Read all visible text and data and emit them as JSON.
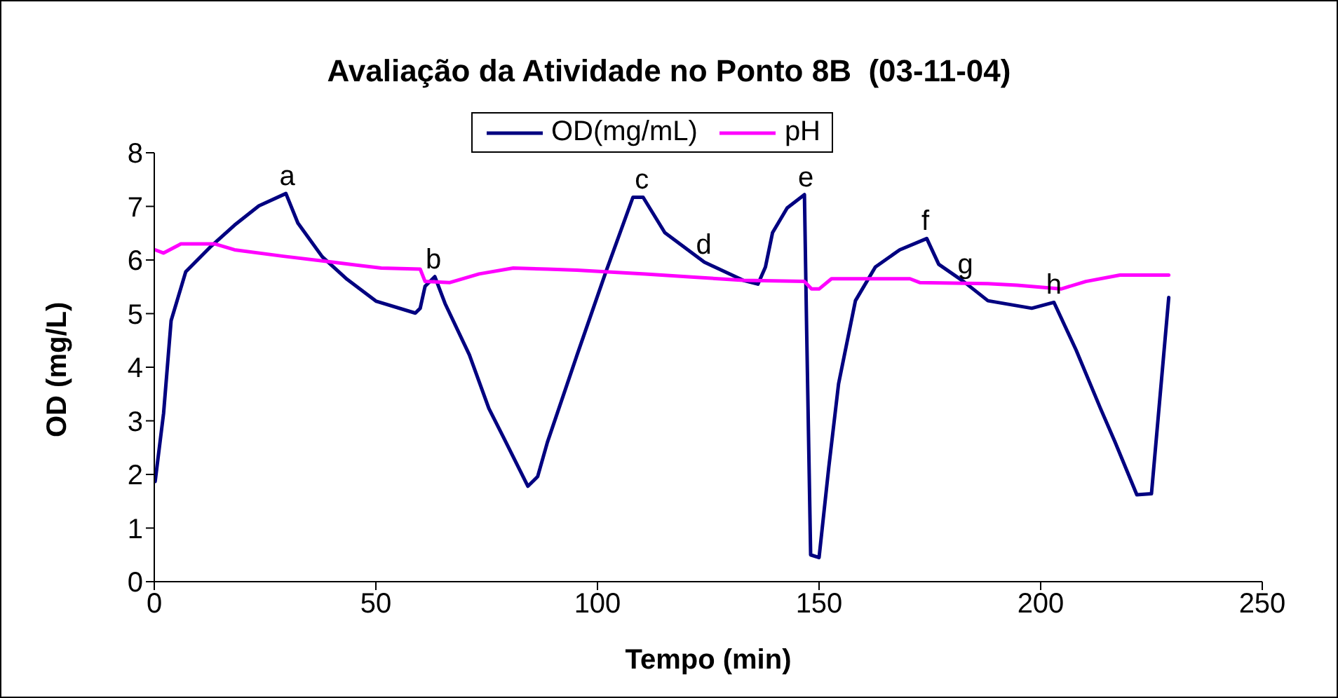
{
  "chart_data": {
    "type": "line",
    "title": "Avaliação da Atividade no Ponto 8B  (03-11-04)",
    "xlabel": "Tempo (min)",
    "ylabel": "OD (mg/L)",
    "xlim": [
      0,
      250
    ],
    "xticks": [
      0,
      50,
      100,
      150,
      200,
      250
    ],
    "ylim": [
      0,
      8
    ],
    "yticks": [
      0,
      1,
      2,
      3,
      4,
      5,
      6,
      7,
      8
    ],
    "grid": false,
    "legend": "top",
    "marker": "none",
    "line_style": "solid",
    "series": [
      {
        "name": "OD(mg/mL)",
        "color": "#000080",
        "x": [
          0.2,
          2.1,
          3.8,
          7.1,
          12.6,
          18.1,
          23.6,
          29.7,
          32.4,
          37.9,
          43.5,
          50.1,
          58.9,
          60.0,
          61.1,
          63.3,
          65.6,
          71.1,
          75.5,
          78.8,
          84.3,
          86.5,
          88.7,
          95.4,
          101.9,
          108.0,
          110.3,
          115.2,
          124.1,
          132.9,
          136.2,
          137.9,
          139.5,
          142.8,
          146.7,
          147.2,
          148.1,
          150.0,
          152.2,
          154.4,
          158.2,
          162.7,
          168.2,
          174.3,
          177.0,
          182.6,
          188.1,
          198.0,
          203.0,
          208.0,
          213.5,
          216.8,
          221.7,
          225.0,
          228.9
        ],
        "values": [
          1.87,
          3.14,
          4.87,
          5.78,
          6.24,
          6.65,
          7.01,
          7.24,
          6.69,
          6.06,
          5.64,
          5.23,
          5.01,
          5.1,
          5.51,
          5.69,
          5.19,
          4.23,
          3.23,
          2.69,
          1.78,
          1.96,
          2.6,
          4.23,
          5.78,
          7.17,
          7.17,
          6.51,
          5.96,
          5.62,
          5.55,
          5.87,
          6.51,
          6.97,
          7.22,
          4.69,
          0.5,
          0.45,
          2.14,
          3.69,
          5.24,
          5.87,
          6.19,
          6.4,
          5.92,
          5.6,
          5.24,
          5.1,
          5.21,
          4.32,
          3.23,
          2.6,
          1.62,
          1.64,
          5.3
        ]
      },
      {
        "name": "pH",
        "color": "#ff00ff",
        "x": [
          0.2,
          2.1,
          6.0,
          13.7,
          18.1,
          29.1,
          40.2,
          51.2,
          60.0,
          61.1,
          66.7,
          73.3,
          81.0,
          88.7,
          95.4,
          110.8,
          121.8,
          132.9,
          146.7,
          148.3,
          150.0,
          152.8,
          170.5,
          172.7,
          188.1,
          194.7,
          204.6,
          210.2,
          217.9,
          228.9
        ],
        "values": [
          6.19,
          6.13,
          6.3,
          6.3,
          6.19,
          6.07,
          5.96,
          5.85,
          5.83,
          5.6,
          5.58,
          5.74,
          5.85,
          5.83,
          5.81,
          5.74,
          5.68,
          5.62,
          5.6,
          5.46,
          5.46,
          5.65,
          5.65,
          5.58,
          5.56,
          5.53,
          5.46,
          5.6,
          5.72,
          5.72
        ]
      }
    ],
    "annotations": [
      {
        "text": "a",
        "x": 30,
        "y": 7.24
      },
      {
        "text": "b",
        "x": 63,
        "y": 5.69
      },
      {
        "text": "c",
        "x": 110,
        "y": 7.17
      },
      {
        "text": "d",
        "x": 124,
        "y": 5.96
      },
      {
        "text": "e",
        "x": 147,
        "y": 7.22
      },
      {
        "text": "f",
        "x": 174,
        "y": 6.4
      },
      {
        "text": "g",
        "x": 183,
        "y": 5.6
      },
      {
        "text": "h",
        "x": 203,
        "y": 5.21
      }
    ]
  }
}
